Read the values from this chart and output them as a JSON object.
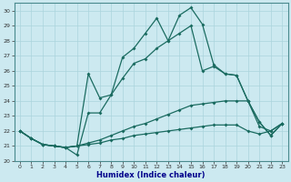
{
  "xlabel": "Humidex (Indice chaleur)",
  "background_color": "#cce9f0",
  "line_color": "#1a6b60",
  "grid_color": "#aad4dc",
  "xlim": [
    -0.5,
    23.5
  ],
  "ylim": [
    20,
    30.5
  ],
  "line1_x": [
    0,
    1,
    2,
    3,
    4,
    5,
    6,
    7,
    8,
    9,
    10,
    11,
    12,
    13,
    14,
    15,
    16,
    17,
    18,
    19,
    20,
    21,
    22,
    23
  ],
  "line1_y": [
    22.0,
    21.5,
    21.1,
    21.0,
    20.9,
    20.4,
    23.2,
    23.2,
    24.4,
    26.9,
    27.5,
    28.5,
    29.5,
    28.0,
    29.7,
    30.2,
    29.1,
    26.4,
    25.8,
    25.7,
    24.0,
    22.6,
    21.7,
    22.5
  ],
  "line2_x": [
    0,
    1,
    2,
    3,
    4,
    5,
    6,
    7,
    8,
    9,
    10,
    11,
    12,
    13,
    14,
    15,
    16,
    17,
    18,
    19,
    20,
    21,
    22,
    23
  ],
  "line2_y": [
    22.0,
    21.5,
    21.1,
    21.0,
    20.9,
    21.0,
    25.8,
    24.2,
    24.4,
    25.5,
    26.5,
    26.8,
    27.5,
    28.0,
    28.5,
    29.0,
    26.0,
    26.3,
    25.8,
    25.7,
    24.0,
    22.6,
    21.7,
    22.5
  ],
  "line3_x": [
    0,
    1,
    2,
    3,
    4,
    5,
    6,
    7,
    8,
    9,
    10,
    11,
    12,
    13,
    14,
    15,
    16,
    17,
    18,
    19,
    20,
    21,
    22,
    23
  ],
  "line3_y": [
    22.0,
    21.5,
    21.1,
    21.0,
    20.9,
    21.0,
    21.2,
    21.4,
    21.7,
    22.0,
    22.3,
    22.5,
    22.8,
    23.1,
    23.4,
    23.7,
    23.8,
    23.9,
    24.0,
    24.0,
    24.0,
    22.3,
    22.0,
    22.5
  ],
  "line4_x": [
    0,
    1,
    2,
    3,
    4,
    5,
    6,
    7,
    8,
    9,
    10,
    11,
    12,
    13,
    14,
    15,
    16,
    17,
    18,
    19,
    20,
    21,
    22,
    23
  ],
  "line4_y": [
    22.0,
    21.5,
    21.1,
    21.0,
    20.9,
    21.0,
    21.1,
    21.2,
    21.4,
    21.5,
    21.7,
    21.8,
    21.9,
    22.0,
    22.1,
    22.2,
    22.3,
    22.4,
    22.4,
    22.4,
    22.0,
    21.8,
    22.0,
    22.5
  ]
}
